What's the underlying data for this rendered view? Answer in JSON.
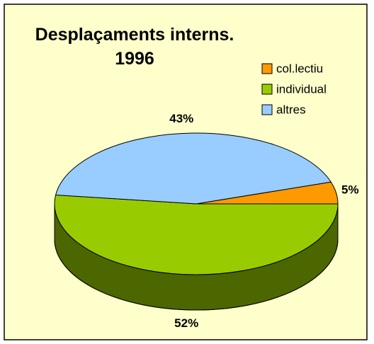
{
  "chart_data": {
    "type": "pie",
    "title": "Desplaçaments interns. 1996",
    "categories": [
      "col.lectiu",
      "individual",
      "altres"
    ],
    "values": [
      5,
      52,
      43
    ],
    "value_labels": [
      "5%",
      "52%",
      "43%"
    ],
    "colors": [
      "#ff9900",
      "#99cc00",
      "#99ccff"
    ],
    "legend": "upper right"
  }
}
